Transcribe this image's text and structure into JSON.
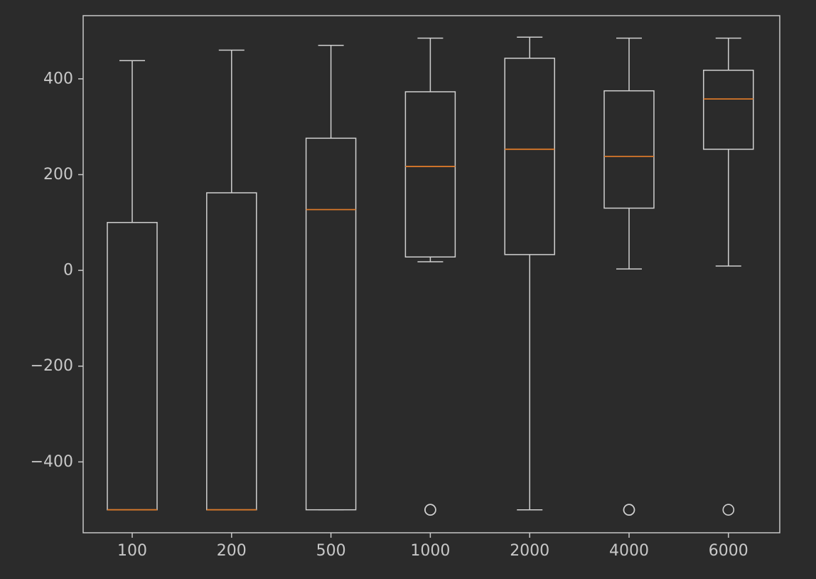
{
  "chart_data": {
    "type": "box",
    "title": "",
    "xlabel": "",
    "ylabel": "",
    "ylim": [
      -548,
      532
    ],
    "yticks": [
      -400,
      -200,
      0,
      200,
      400
    ],
    "ytick_labels": [
      "−400",
      "−200",
      "0",
      "200",
      "400"
    ],
    "categories": [
      "100",
      "200",
      "500",
      "1000",
      "2000",
      "4000",
      "6000"
    ],
    "boxes": [
      {
        "label": "100",
        "whisker_low": -500,
        "q1": -500,
        "median": -500,
        "q3": 100,
        "whisker_high": 438,
        "outliers": []
      },
      {
        "label": "200",
        "whisker_low": -500,
        "q1": -500,
        "median": -500,
        "q3": 162,
        "whisker_high": 460,
        "outliers": []
      },
      {
        "label": "500",
        "whisker_low": -500,
        "q1": -500,
        "median": 127,
        "q3": 276,
        "whisker_high": 470,
        "outliers": []
      },
      {
        "label": "1000",
        "whisker_low": 18,
        "q1": 28,
        "median": 217,
        "q3": 373,
        "whisker_high": 485,
        "outliers": [
          -500,
          -500
        ]
      },
      {
        "label": "2000",
        "whisker_low": -500,
        "q1": 33,
        "median": 253,
        "q3": 443,
        "whisker_high": 487,
        "outliers": []
      },
      {
        "label": "4000",
        "whisker_low": 3,
        "q1": 130,
        "median": 238,
        "q3": 375,
        "whisker_high": 485,
        "outliers": [
          -500,
          -500
        ]
      },
      {
        "label": "6000",
        "whisker_low": 9,
        "q1": 253,
        "median": 358,
        "q3": 418,
        "whisker_high": 485,
        "outliers": [
          -500
        ]
      }
    ],
    "grid": false,
    "colors": {
      "background": "#2b2b2b",
      "axes": "#c8c8c8",
      "box": "#d0d0d0",
      "median": "#d8782a",
      "text": "#c8c8c8"
    }
  }
}
